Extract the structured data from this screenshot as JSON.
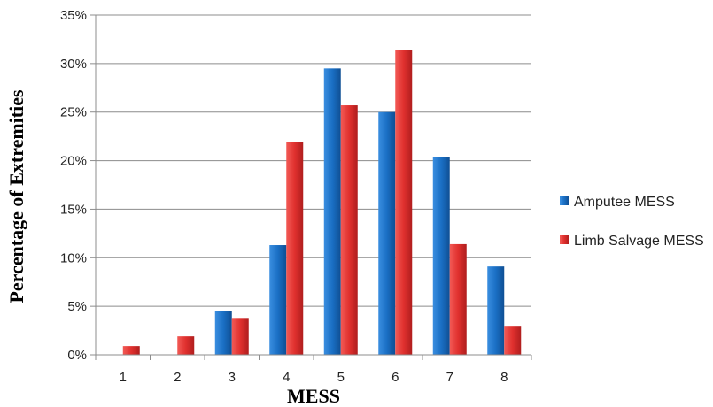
{
  "chart_data": {
    "type": "bar",
    "title": "",
    "xlabel": "MESS",
    "ylabel": "Percentage of Extremities",
    "categories": [
      "1",
      "2",
      "3",
      "4",
      "5",
      "6",
      "7",
      "8"
    ],
    "y_ticks": [
      "0%",
      "5%",
      "10%",
      "15%",
      "20%",
      "25%",
      "30%",
      "35%"
    ],
    "ylim": [
      0,
      35
    ],
    "grid": true,
    "legend_position": "right",
    "series": [
      {
        "name": "Amputee MESS",
        "color": "#1a6fc4",
        "values": [
          0,
          0,
          4.5,
          11.3,
          29.5,
          25.0,
          20.4,
          9.1
        ]
      },
      {
        "name": "Limb Salvage MESS",
        "color": "#e0302e",
        "values": [
          0.9,
          1.9,
          3.8,
          21.9,
          25.7,
          31.4,
          11.4,
          2.9
        ]
      }
    ]
  }
}
